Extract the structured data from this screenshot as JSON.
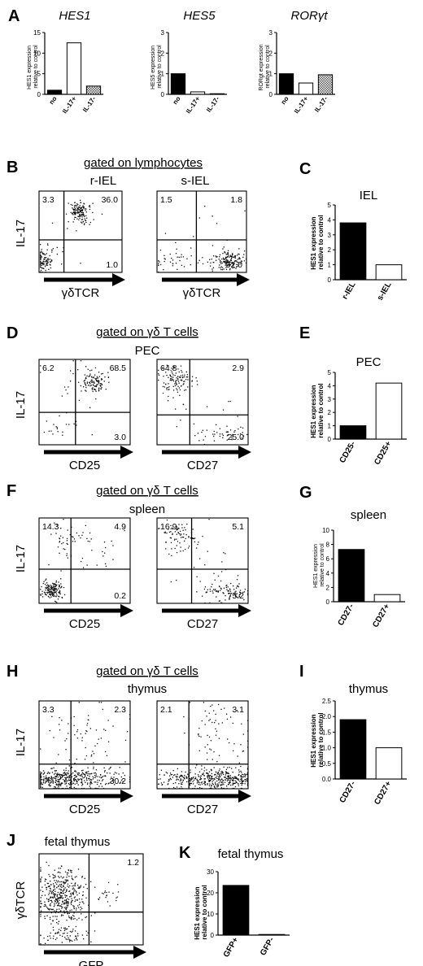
{
  "colors": {
    "black": "#000000",
    "white": "#ffffff",
    "hatch": "#9a9a9a",
    "dot": "#111111"
  },
  "panels": {
    "A": {
      "letter": "A",
      "charts": [
        {
          "title": "HES1",
          "ylabel_line1": "HES1 expression",
          "ylabel_line2": "relative to control"
        },
        {
          "title": "HES5",
          "ylabel_line1": "HES5 expression",
          "ylabel_line2": "relative to control"
        },
        {
          "title": "ROR",
          "title_greek": "γ",
          "title_tail": "t",
          "ylabel_line1": "RORgt expression",
          "ylabel_line2": "relative to control"
        }
      ]
    },
    "B": {
      "letter": "B",
      "gate": "gated on lymphocytes",
      "ylabel": "IL-17",
      "plots": [
        {
          "name": "r-IEL",
          "xlabel": "γδTCR",
          "quad": {
            "ul": "3.3",
            "ur": "36.0",
            "lr": "1.0"
          }
        },
        {
          "name": "s-IEL",
          "xlabel": "γδTCR",
          "quad": {
            "ul": "1.5",
            "ur": "1.8",
            "lr": "92.0"
          }
        }
      ]
    },
    "C": {
      "letter": "C",
      "title": "IEL",
      "ylabel_line1": "HES1 expression",
      "ylabel_line2": "relative to control"
    },
    "D": {
      "letter": "D",
      "gate": "gated on γδ T cells",
      "tissue": "PEC",
      "ylabel": "IL-17",
      "plots": [
        {
          "xlabel": "CD25",
          "quad": {
            "ul": "6.2",
            "ur": "68.5",
            "lr": "3.0"
          }
        },
        {
          "xlabel": "CD27",
          "quad": {
            "ul": "64.8",
            "ur": "2.9",
            "lr": "25.0"
          }
        }
      ]
    },
    "E": {
      "letter": "E",
      "title": "PEC",
      "ylabel_line1": "HES1 expression",
      "ylabel_line2": "relative to control"
    },
    "F": {
      "letter": "F",
      "gate": "gated on γδ T cells",
      "tissue": "spleen",
      "ylabel": "IL-17",
      "plots": [
        {
          "xlabel": "CD25",
          "quad": {
            "ul": "14.3",
            "ur": "4.9",
            "lr": "0.2"
          }
        },
        {
          "xlabel": "CD27",
          "quad": {
            "ul": "16.9",
            "ur": "5.1",
            "lr": "75.2"
          }
        }
      ]
    },
    "G": {
      "letter": "G",
      "title": "spleen",
      "ylabel_line1": "HES1 expression",
      "ylabel_line2": "relative to control"
    },
    "H": {
      "letter": "H",
      "gate": "gated on γδ T cells",
      "tissue": "thymus",
      "ylabel": "IL-17",
      "plots": [
        {
          "xlabel": "CD25",
          "quad": {
            "ul": "3.3",
            "ur": "2.3",
            "lr": "30.2"
          }
        },
        {
          "xlabel": "CD27",
          "quad": {
            "ul": "2.1",
            "ur": "3.1",
            "lr": "75.1"
          }
        }
      ]
    },
    "I": {
      "letter": "I",
      "title": "thymus",
      "ylabel_line1": "HES1 expression",
      "ylabel_line2": "relative to control"
    },
    "J": {
      "letter": "J",
      "title": "fetal thymus",
      "ylabel": "γδTCR",
      "xlabel": "GFP",
      "quad": {
        "ur": "1.2"
      }
    },
    "K": {
      "letter": "K",
      "title": "fetal thymus",
      "ylabel_line1": "HES1 expression",
      "ylabel_line2": "relative to control"
    }
  },
  "chart_data": [
    {
      "id": "A1",
      "type": "bar",
      "title": "HES1",
      "categories": [
        "no",
        "IL-17+",
        "IL-17-"
      ],
      "values": [
        1,
        12.5,
        2
      ],
      "ylim": [
        0,
        15
      ],
      "yticks": [
        0,
        5,
        10,
        15
      ],
      "fills": [
        "black",
        "white",
        "hatch"
      ]
    },
    {
      "id": "A2",
      "type": "bar",
      "title": "HES5",
      "categories": [
        "no",
        "IL-17+",
        "IL-17-"
      ],
      "values": [
        1,
        0.12,
        0.03
      ],
      "ylim": [
        0,
        3
      ],
      "yticks": [
        0,
        1,
        2,
        3
      ],
      "fills": [
        "black",
        "white",
        "hatch"
      ]
    },
    {
      "id": "A3",
      "type": "bar",
      "title": "RORγt",
      "categories": [
        "no",
        "IL-17+",
        "IL-17-"
      ],
      "values": [
        1,
        0.55,
        0.95
      ],
      "ylim": [
        0,
        3
      ],
      "yticks": [
        0,
        1,
        2,
        3
      ],
      "fills": [
        "black",
        "white",
        "hatch"
      ]
    },
    {
      "id": "C",
      "type": "bar",
      "title": "IEL",
      "categories": [
        "r-IEL",
        "s-IEL"
      ],
      "values": [
        3.8,
        1
      ],
      "ylim": [
        0,
        5
      ],
      "yticks": [
        0,
        1,
        2,
        3,
        4,
        5
      ],
      "fills": [
        "black",
        "white"
      ]
    },
    {
      "id": "E",
      "type": "bar",
      "title": "PEC",
      "categories": [
        "CD25-",
        "CD25+"
      ],
      "values": [
        1,
        4.2
      ],
      "ylim": [
        0,
        5
      ],
      "yticks": [
        0,
        1,
        2,
        3,
        4,
        5
      ],
      "fills": [
        "black",
        "white"
      ]
    },
    {
      "id": "G",
      "type": "bar",
      "title": "spleen",
      "categories": [
        "CD27-",
        "CD27+"
      ],
      "values": [
        7.3,
        1
      ],
      "ylim": [
        0,
        10
      ],
      "yticks": [
        0,
        2,
        4,
        6,
        8,
        10
      ],
      "fills": [
        "black",
        "white"
      ]
    },
    {
      "id": "I",
      "type": "bar",
      "title": "thymus",
      "categories": [
        "CD27-",
        "CD27+"
      ],
      "values": [
        1.9,
        1
      ],
      "ylim": [
        0,
        2.5
      ],
      "yticks": [
        0,
        0.5,
        1,
        1.5,
        2,
        2.5
      ],
      "ytick_labels": [
        "0.0",
        "0.5",
        "1.0",
        "1.5",
        "2.0",
        "2.5"
      ],
      "fills": [
        "black",
        "white"
      ]
    },
    {
      "id": "K",
      "type": "bar",
      "title": "fetal thymus",
      "categories": [
        "GFP+",
        "GFP-"
      ],
      "values": [
        23.5,
        0.3
      ],
      "ylim": [
        0,
        30
      ],
      "yticks": [
        0,
        10,
        20,
        30
      ],
      "fills": [
        "black",
        "white"
      ]
    }
  ]
}
